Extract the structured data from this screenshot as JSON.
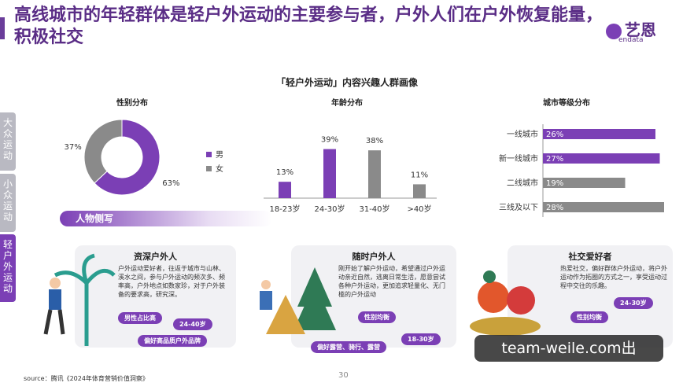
{
  "header": {
    "title": "高线城市的年轻群体是轻户外运动的主要参与者，户外人们在户外恢复能量，积极社交",
    "logo": "艺恩",
    "logo_sub": "endata"
  },
  "sidebar": [
    "大众运动",
    "小众运动",
    "轻户外运动"
  ],
  "section_title": "「轻户外运动」内容兴趣人群画像",
  "chart_data": [
    {
      "type": "pie",
      "title": "性别分布",
      "categories": [
        "男",
        "女"
      ],
      "values": [
        63,
        37
      ],
      "value_labels": [
        "63%",
        "37%"
      ],
      "colors": [
        "#7b3fb5",
        "#8a8a8a"
      ]
    },
    {
      "type": "bar",
      "title": "年龄分布",
      "categories": [
        "18-23岁",
        "24-30岁",
        "31-40岁",
        ">40岁"
      ],
      "values": [
        13,
        39,
        38,
        11
      ],
      "value_labels": [
        "13%",
        "39%",
        "38%",
        "11%"
      ],
      "colors": [
        "#7b3fb5",
        "#7b3fb5",
        "#8a8a8a",
        "#8a8a8a"
      ]
    },
    {
      "type": "bar",
      "orientation": "horizontal",
      "title": "城市等级分布",
      "categories": [
        "一线城市",
        "新一线城市",
        "二线城市",
        "三线及以下"
      ],
      "values": [
        26,
        27,
        19,
        28
      ],
      "value_labels": [
        "26%",
        "27%",
        "19%",
        "28%"
      ],
      "colors": [
        "#7b3fb5",
        "#7b3fb5",
        "#8a8a8a",
        "#8a8a8a"
      ]
    }
  ],
  "persona": {
    "title": "人物侧写",
    "cards": [
      {
        "title": "资深户外人",
        "text": "户外运动爱好者，往返于城市与山林、溪水之间，参与户外运动的频次多、频率高，户外地点如数家珍，对于户外装备的要求高，研究深。",
        "tags": [
          "男性占比高",
          "24-40岁",
          "偏好高品质户外品牌"
        ]
      },
      {
        "title": "随时户外人",
        "text": "刚开始了解户外运动，希望通过户外运动亲近自然，逃离日常生活，愿意尝试各种户外运动，更加追求轻量化、无门槛的户外运动",
        "tags": [
          "性别均衡",
          "偏好露营、骑行、露营",
          "18-30岁"
        ]
      },
      {
        "title": "社交爱好者",
        "text": "热爱社交，偏好群体户外运动，将户外运动作为拓圈的方式之一，享受运动过程中交往的乐趣。",
        "tags": [
          "24-30岁",
          "性别均衡"
        ]
      }
    ]
  },
  "source": "source：腾讯《2024年体育营销价值洞察》",
  "page_number": "30",
  "watermark": "team-weile.com出"
}
